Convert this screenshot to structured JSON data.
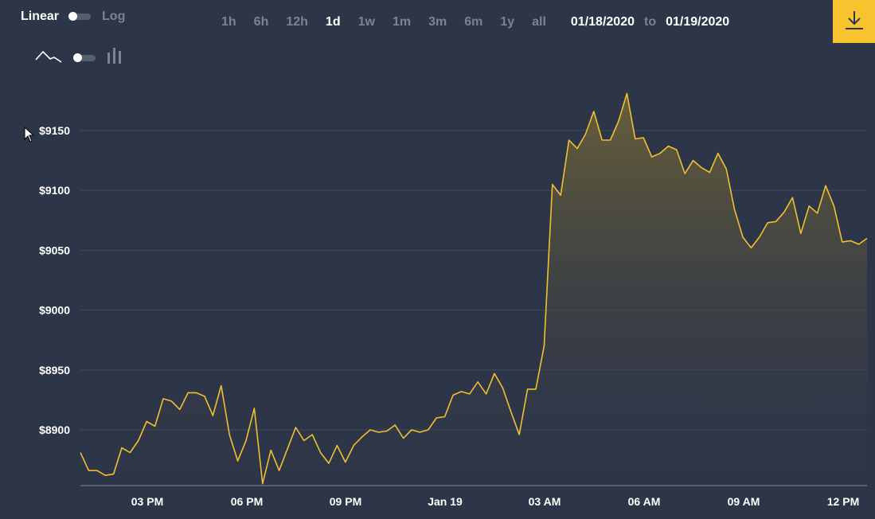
{
  "toolbar": {
    "scale": {
      "linear_label": "Linear",
      "log_label": "Log"
    },
    "ranges": [
      "1h",
      "6h",
      "12h",
      "1d",
      "1w",
      "1m",
      "3m",
      "6m",
      "1y",
      "all"
    ],
    "active_range": "1d",
    "date_from": "01/18/2020",
    "date_sep": "to",
    "date_to": "01/19/2020",
    "icons": {
      "line_chart": "line-chart-icon",
      "candlestick": "candlestick-icon",
      "download": "download-icon"
    }
  },
  "colors": {
    "background": "#2d3548",
    "line": "#f0c030",
    "accent": "#f7c42f",
    "grid": "#414a5e"
  },
  "chart_data": {
    "type": "area",
    "ylim": [
      8855,
      9185
    ],
    "y_ticks": [
      8900,
      8950,
      9000,
      9050,
      9100,
      9150
    ],
    "y_tick_labels": [
      "$8900",
      "$8950",
      "$9000",
      "$9050",
      "$9100",
      "$9150"
    ],
    "x_tick_labels": [
      "03 PM",
      "06 PM",
      "09 PM",
      "Jan 19",
      "03 AM",
      "06 AM",
      "09 AM",
      "12 PM"
    ],
    "grid": true,
    "series": [
      {
        "values": [
          8881,
          8866,
          8866,
          8862,
          8863,
          8885,
          8881,
          8891,
          8907,
          8903,
          8926,
          8924,
          8917,
          8931,
          8931,
          8928,
          8912,
          8937,
          8896,
          8874,
          8891,
          8918,
          8855,
          8883,
          8866,
          8884,
          8902,
          8891,
          8896,
          8881,
          8872,
          8887,
          8873,
          8887,
          8894,
          8900,
          8898,
          8899,
          8904,
          8893,
          8900,
          8898,
          8900,
          8910,
          8911,
          8929,
          8932,
          8930,
          8940,
          8930,
          8947,
          8935,
          8915,
          8896,
          8934,
          8934,
          8970,
          9105,
          9096,
          9142,
          9135,
          9147,
          9166,
          9142,
          9142,
          9158,
          9181,
          9143,
          9144,
          9128,
          9131,
          9137,
          9134,
          9114,
          9125,
          9119,
          9115,
          9131,
          9118,
          9084,
          9061,
          9052,
          9061,
          9073,
          9074,
          9082,
          9094,
          9064,
          9087,
          9081,
          9104,
          9087,
          9057,
          9058,
          9055,
          9060
        ]
      }
    ]
  }
}
